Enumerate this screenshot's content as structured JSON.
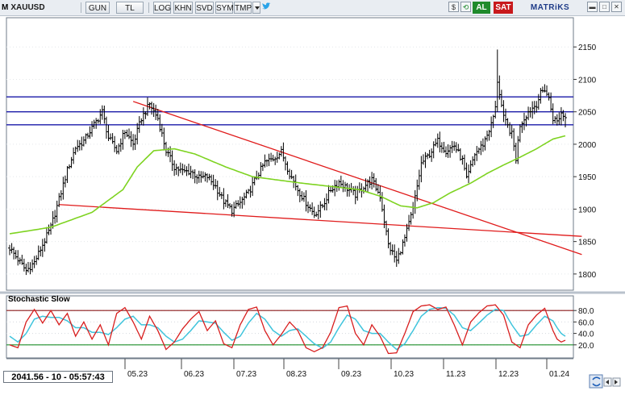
{
  "toolbar": {
    "symbol_prefix": "M",
    "symbol": "XAUUSD",
    "buttons": [
      "GUN",
      "TL",
      "LOG",
      "KHN",
      "SVD",
      "SYM",
      "TMP"
    ],
    "dropdown_icon": "chevron-down-icon",
    "twitter_icon": "bird-icon",
    "buy_label": "AL",
    "sell_label": "SAT",
    "brand": "MATRiKS"
  },
  "status": {
    "readout": "2041.56 - 10 - 05:57:43"
  },
  "colors": {
    "price_bars": "#000000",
    "moving_average": "#7ed321",
    "trend_line": "#e01b1b",
    "horizontal_levels": "#1a1aa8",
    "stoch_k": "#d81e1e",
    "stoch_d": "#3fc4dc",
    "stoch_upper": "#8b1a1a",
    "stoch_lower": "#1e8f2a"
  },
  "chart_data": [
    {
      "type": "candlestick",
      "title": "",
      "x_ticks": [
        "05.23",
        "06.23",
        "07.23",
        "08.23",
        "09.23",
        "10.23",
        "11.23",
        "12.23",
        "01.24"
      ],
      "y_ticks": [
        1800,
        1850,
        1900,
        1950,
        2000,
        2050,
        2100,
        2150
      ],
      "ylim": [
        1775,
        2195
      ],
      "price_keypoints": [
        [
          0,
          1840
        ],
        [
          8,
          1805
        ],
        [
          12,
          1818
        ],
        [
          16,
          1845
        ],
        [
          20,
          1872
        ],
        [
          24,
          1915
        ],
        [
          28,
          1960
        ],
        [
          32,
          1995
        ],
        [
          36,
          2005
        ],
        [
          42,
          2035
        ],
        [
          45,
          2050
        ],
        [
          48,
          2010
        ],
        [
          52,
          1990
        ],
        [
          56,
          2020
        ],
        [
          60,
          2000
        ],
        [
          64,
          2040
        ],
        [
          68,
          2062
        ],
        [
          72,
          2040
        ],
        [
          76,
          1990
        ],
        [
          80,
          1965
        ],
        [
          84,
          1958
        ],
        [
          88,
          1958
        ],
        [
          92,
          1948
        ],
        [
          96,
          1950
        ],
        [
          100,
          1935
        ],
        [
          104,
          1912
        ],
        [
          108,
          1898
        ],
        [
          112,
          1910
        ],
        [
          116,
          1925
        ],
        [
          120,
          1950
        ],
        [
          124,
          1972
        ],
        [
          128,
          1978
        ],
        [
          132,
          1988
        ],
        [
          136,
          1955
        ],
        [
          140,
          1930
        ],
        [
          144,
          1910
        ],
        [
          148,
          1892
        ],
        [
          152,
          1905
        ],
        [
          156,
          1930
        ],
        [
          160,
          1942
        ],
        [
          164,
          1932
        ],
        [
          168,
          1922
        ],
        [
          172,
          1935
        ],
        [
          176,
          1945
        ],
        [
          180,
          1920
        ],
        [
          184,
          1845
        ],
        [
          188,
          1820
        ],
        [
          192,
          1855
        ],
        [
          196,
          1900
        ],
        [
          200,
          1970
        ],
        [
          204,
          1985
        ],
        [
          208,
          2005
        ],
        [
          212,
          1990
        ],
        [
          216,
          1998
        ],
        [
          220,
          1975
        ],
        [
          222,
          1945
        ],
        [
          226,
          1985
        ],
        [
          230,
          2000
        ],
        [
          234,
          2030
        ],
        [
          236,
          2055
        ],
        [
          237,
          2098
        ],
        [
          240,
          2040
        ],
        [
          244,
          2015
        ],
        [
          246,
          1978
        ],
        [
          248,
          2030
        ],
        [
          252,
          2050
        ],
        [
          256,
          2062
        ],
        [
          258,
          2078
        ],
        [
          260,
          2085
        ],
        [
          262,
          2070
        ],
        [
          264,
          2040
        ],
        [
          266,
          2035
        ],
        [
          268,
          2048
        ],
        [
          270,
          2041.56
        ]
      ],
      "spikes": [
        {
          "bar": 237,
          "high": 2146
        }
      ],
      "moving_average_keypoints": [
        [
          0,
          1862
        ],
        [
          20,
          1872
        ],
        [
          40,
          1895
        ],
        [
          55,
          1930
        ],
        [
          62,
          1965
        ],
        [
          70,
          1990
        ],
        [
          80,
          1993
        ],
        [
          90,
          1985
        ],
        [
          105,
          1965
        ],
        [
          118,
          1950
        ],
        [
          130,
          1945
        ],
        [
          142,
          1940
        ],
        [
          156,
          1935
        ],
        [
          170,
          1930
        ],
        [
          180,
          1920
        ],
        [
          190,
          1905
        ],
        [
          198,
          1902
        ],
        [
          206,
          1910
        ],
        [
          214,
          1925
        ],
        [
          224,
          1940
        ],
        [
          232,
          1955
        ],
        [
          240,
          1968
        ],
        [
          248,
          1980
        ],
        [
          256,
          1993
        ],
        [
          264,
          2008
        ],
        [
          270,
          2013
        ]
      ],
      "horizontal_levels": [
        2073,
        2050,
        2030
      ],
      "trend_lines": [
        {
          "from": [
            24,
            1907
          ],
          "to": [
            278,
            1858
          ]
        },
        {
          "from": [
            60,
            2066
          ],
          "to": [
            278,
            1830
          ]
        }
      ]
    },
    {
      "type": "line",
      "title": "Stochastic Slow",
      "y_ticks": [
        20,
        40,
        60,
        80
      ],
      "ylim": [
        0,
        100
      ],
      "levels": [
        80,
        20
      ],
      "k_keypoints": [
        [
          0,
          20
        ],
        [
          4,
          15
        ],
        [
          8,
          60
        ],
        [
          12,
          82
        ],
        [
          16,
          58
        ],
        [
          20,
          80
        ],
        [
          24,
          55
        ],
        [
          28,
          75
        ],
        [
          32,
          35
        ],
        [
          36,
          60
        ],
        [
          40,
          30
        ],
        [
          44,
          55
        ],
        [
          48,
          20
        ],
        [
          52,
          75
        ],
        [
          56,
          85
        ],
        [
          60,
          60
        ],
        [
          64,
          30
        ],
        [
          68,
          70
        ],
        [
          72,
          45
        ],
        [
          76,
          12
        ],
        [
          80,
          25
        ],
        [
          84,
          48
        ],
        [
          88,
          65
        ],
        [
          92,
          78
        ],
        [
          96,
          45
        ],
        [
          100,
          62
        ],
        [
          104,
          22
        ],
        [
          108,
          15
        ],
        [
          112,
          55
        ],
        [
          116,
          82
        ],
        [
          120,
          86
        ],
        [
          124,
          45
        ],
        [
          128,
          20
        ],
        [
          132,
          38
        ],
        [
          136,
          60
        ],
        [
          140,
          45
        ],
        [
          144,
          15
        ],
        [
          148,
          8
        ],
        [
          152,
          15
        ],
        [
          156,
          42
        ],
        [
          160,
          85
        ],
        [
          164,
          88
        ],
        [
          168,
          40
        ],
        [
          172,
          20
        ],
        [
          176,
          55
        ],
        [
          180,
          35
        ],
        [
          184,
          5
        ],
        [
          188,
          6
        ],
        [
          192,
          40
        ],
        [
          196,
          78
        ],
        [
          200,
          88
        ],
        [
          204,
          90
        ],
        [
          208,
          82
        ],
        [
          212,
          86
        ],
        [
          216,
          55
        ],
        [
          220,
          20
        ],
        [
          224,
          60
        ],
        [
          228,
          76
        ],
        [
          232,
          88
        ],
        [
          236,
          90
        ],
        [
          240,
          72
        ],
        [
          244,
          25
        ],
        [
          248,
          15
        ],
        [
          252,
          55
        ],
        [
          256,
          72
        ],
        [
          260,
          84
        ],
        [
          264,
          45
        ],
        [
          266,
          30
        ],
        [
          268,
          25
        ],
        [
          270,
          28
        ]
      ],
      "d_keypoints": [
        [
          0,
          35
        ],
        [
          4,
          25
        ],
        [
          8,
          40
        ],
        [
          12,
          65
        ],
        [
          16,
          70
        ],
        [
          20,
          68
        ],
        [
          24,
          68
        ],
        [
          28,
          62
        ],
        [
          32,
          50
        ],
        [
          36,
          50
        ],
        [
          40,
          42
        ],
        [
          44,
          42
        ],
        [
          48,
          38
        ],
        [
          52,
          50
        ],
        [
          56,
          65
        ],
        [
          60,
          70
        ],
        [
          64,
          55
        ],
        [
          68,
          55
        ],
        [
          72,
          50
        ],
        [
          76,
          35
        ],
        [
          80,
          25
        ],
        [
          84,
          30
        ],
        [
          88,
          45
        ],
        [
          92,
          62
        ],
        [
          96,
          60
        ],
        [
          100,
          58
        ],
        [
          104,
          42
        ],
        [
          108,
          28
        ],
        [
          112,
          35
        ],
        [
          116,
          58
        ],
        [
          120,
          75
        ],
        [
          124,
          65
        ],
        [
          128,
          45
        ],
        [
          132,
          35
        ],
        [
          136,
          45
        ],
        [
          140,
          48
        ],
        [
          144,
          35
        ],
        [
          148,
          22
        ],
        [
          152,
          14
        ],
        [
          156,
          25
        ],
        [
          160,
          50
        ],
        [
          164,
          72
        ],
        [
          168,
          65
        ],
        [
          172,
          45
        ],
        [
          176,
          40
        ],
        [
          180,
          40
        ],
        [
          184,
          25
        ],
        [
          188,
          12
        ],
        [
          192,
          22
        ],
        [
          196,
          45
        ],
        [
          200,
          70
        ],
        [
          204,
          82
        ],
        [
          208,
          85
        ],
        [
          212,
          84
        ],
        [
          216,
          72
        ],
        [
          220,
          50
        ],
        [
          224,
          45
        ],
        [
          228,
          58
        ],
        [
          232,
          72
        ],
        [
          236,
          82
        ],
        [
          240,
          80
        ],
        [
          244,
          55
        ],
        [
          248,
          35
        ],
        [
          252,
          38
        ],
        [
          256,
          55
        ],
        [
          260,
          70
        ],
        [
          264,
          62
        ],
        [
          266,
          50
        ],
        [
          268,
          40
        ],
        [
          270,
          35
        ]
      ]
    }
  ]
}
